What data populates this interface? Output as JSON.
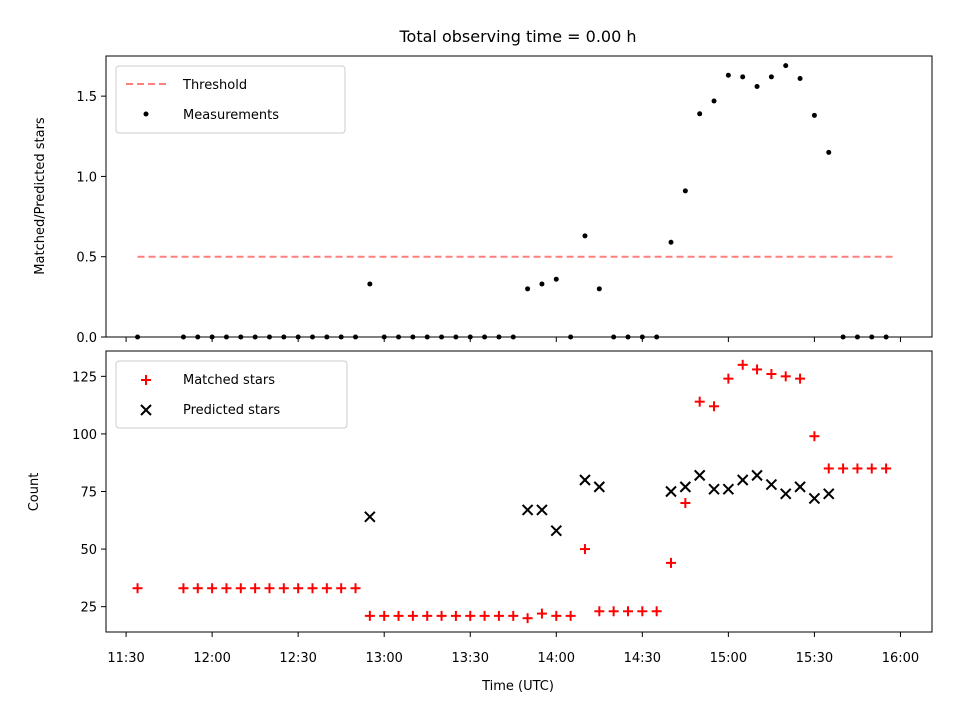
{
  "chart_data": [
    {
      "type": "scatter",
      "title": "Total observing time = 0.00 h",
      "xlabel": "",
      "ylabel": "Matched/Predicted stars",
      "ylim": [
        0,
        1.75
      ],
      "yticks": [
        0.0,
        0.5,
        1.0,
        1.5
      ],
      "ytick_labels": [
        "0.0",
        "0.5",
        "1.0",
        "1.5"
      ],
      "legend": {
        "position": "top-left",
        "entries": [
          "Threshold",
          "Measurements"
        ]
      },
      "colors": {
        "threshold": "#ff7f7f",
        "measurements": "#000000"
      },
      "threshold": {
        "name": "Threshold",
        "value": 0.5,
        "x_start": "11:34",
        "x_end": "15:58"
      },
      "series": [
        {
          "name": "Measurements",
          "points": [
            [
              "11:34",
              0
            ],
            [
              "11:50",
              0
            ],
            [
              "11:55",
              0
            ],
            [
              "12:00",
              0
            ],
            [
              "12:05",
              0
            ],
            [
              "12:10",
              0
            ],
            [
              "12:15",
              0
            ],
            [
              "12:20",
              0
            ],
            [
              "12:25",
              0
            ],
            [
              "12:30",
              0
            ],
            [
              "12:35",
              0
            ],
            [
              "12:40",
              0
            ],
            [
              "12:45",
              0
            ],
            [
              "12:50",
              0
            ],
            [
              "12:55",
              0.33
            ],
            [
              "13:00",
              0
            ],
            [
              "13:05",
              0
            ],
            [
              "13:10",
              0
            ],
            [
              "13:15",
              0
            ],
            [
              "13:20",
              0
            ],
            [
              "13:25",
              0
            ],
            [
              "13:30",
              0
            ],
            [
              "13:35",
              0
            ],
            [
              "13:40",
              0
            ],
            [
              "13:45",
              0
            ],
            [
              "13:50",
              0.3
            ],
            [
              "13:55",
              0.33
            ],
            [
              "14:00",
              0.36
            ],
            [
              "14:05",
              0
            ],
            [
              "14:10",
              0.63
            ],
            [
              "14:15",
              0.3
            ],
            [
              "14:20",
              0
            ],
            [
              "14:25",
              0
            ],
            [
              "14:30",
              0
            ],
            [
              "14:35",
              0
            ],
            [
              "14:40",
              0.59
            ],
            [
              "14:45",
              0.91
            ],
            [
              "14:50",
              1.39
            ],
            [
              "14:55",
              1.47
            ],
            [
              "15:00",
              1.63
            ],
            [
              "15:05",
              1.62
            ],
            [
              "15:10",
              1.56
            ],
            [
              "15:15",
              1.62
            ],
            [
              "15:20",
              1.69
            ],
            [
              "15:25",
              1.61
            ],
            [
              "15:30",
              1.38
            ],
            [
              "15:35",
              1.15
            ],
            [
              "15:40",
              0
            ],
            [
              "15:45",
              0
            ],
            [
              "15:50",
              0
            ],
            [
              "15:55",
              0
            ]
          ]
        }
      ]
    },
    {
      "type": "scatter",
      "title": "",
      "xlabel": "Time (UTC)",
      "ylabel": "Count",
      "xlim": [
        "11:23",
        "16:11"
      ],
      "xticks": [
        "11:30",
        "12:00",
        "12:30",
        "13:00",
        "13:30",
        "14:00",
        "14:30",
        "15:00",
        "15:30",
        "16:00"
      ],
      "ylim": [
        14,
        136
      ],
      "yticks": [
        25,
        50,
        75,
        100,
        125
      ],
      "ytick_labels": [
        "25",
        "50",
        "75",
        "100",
        "125"
      ],
      "legend": {
        "position": "top-left",
        "entries": [
          "Matched stars",
          "Predicted stars"
        ]
      },
      "colors": {
        "matched": "#ff0000",
        "predicted": "#000000"
      },
      "series": [
        {
          "name": "Matched stars",
          "marker": "plus",
          "points": [
            [
              "11:34",
              33
            ],
            [
              "11:50",
              33
            ],
            [
              "11:55",
              33
            ],
            [
              "12:00",
              33
            ],
            [
              "12:05",
              33
            ],
            [
              "12:10",
              33
            ],
            [
              "12:15",
              33
            ],
            [
              "12:20",
              33
            ],
            [
              "12:25",
              33
            ],
            [
              "12:30",
              33
            ],
            [
              "12:35",
              33
            ],
            [
              "12:40",
              33
            ],
            [
              "12:45",
              33
            ],
            [
              "12:50",
              33
            ],
            [
              "12:55",
              21
            ],
            [
              "13:00",
              21
            ],
            [
              "13:05",
              21
            ],
            [
              "13:10",
              21
            ],
            [
              "13:15",
              21
            ],
            [
              "13:20",
              21
            ],
            [
              "13:25",
              21
            ],
            [
              "13:30",
              21
            ],
            [
              "13:35",
              21
            ],
            [
              "13:40",
              21
            ],
            [
              "13:45",
              21
            ],
            [
              "13:50",
              20
            ],
            [
              "13:55",
              22
            ],
            [
              "14:00",
              21
            ],
            [
              "14:05",
              21
            ],
            [
              "14:10",
              50
            ],
            [
              "14:15",
              23
            ],
            [
              "14:20",
              23
            ],
            [
              "14:25",
              23
            ],
            [
              "14:30",
              23
            ],
            [
              "14:35",
              23
            ],
            [
              "14:40",
              44
            ],
            [
              "14:45",
              70
            ],
            [
              "14:50",
              114
            ],
            [
              "14:55",
              112
            ],
            [
              "15:00",
              124
            ],
            [
              "15:05",
              130
            ],
            [
              "15:10",
              128
            ],
            [
              "15:15",
              126
            ],
            [
              "15:20",
              125
            ],
            [
              "15:25",
              124
            ],
            [
              "15:30",
              99
            ],
            [
              "15:35",
              85
            ],
            [
              "15:40",
              85
            ],
            [
              "15:45",
              85
            ],
            [
              "15:50",
              85
            ],
            [
              "15:55",
              85
            ]
          ]
        },
        {
          "name": "Predicted stars",
          "marker": "x",
          "points": [
            [
              "12:55",
              64
            ],
            [
              "13:50",
              67
            ],
            [
              "13:55",
              67
            ],
            [
              "14:00",
              58
            ],
            [
              "14:10",
              80
            ],
            [
              "14:15",
              77
            ],
            [
              "14:40",
              75
            ],
            [
              "14:45",
              77
            ],
            [
              "14:50",
              82
            ],
            [
              "14:55",
              76
            ],
            [
              "15:00",
              76
            ],
            [
              "15:05",
              80
            ],
            [
              "15:10",
              82
            ],
            [
              "15:15",
              78
            ],
            [
              "15:20",
              74
            ],
            [
              "15:25",
              77
            ],
            [
              "15:30",
              72
            ],
            [
              "15:35",
              74
            ]
          ]
        }
      ]
    }
  ]
}
